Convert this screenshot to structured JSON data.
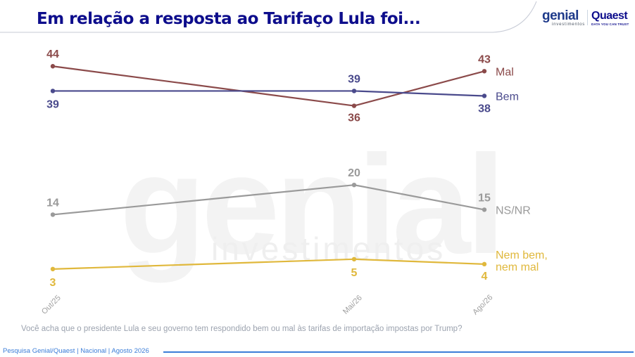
{
  "title": "Em relação a resposta ao Tarifaço Lula foi...",
  "logos": {
    "genial": "genial",
    "genial_sub": "investimentos",
    "quaest": "Quaest",
    "quaest_tagline": "DATA YOU CAN TRUST"
  },
  "watermark": {
    "word": "genial",
    "sub": "investimentos"
  },
  "colors": {
    "title": "#0d0d8c",
    "mal": "#8b4a4a",
    "bem": "#4a4a8c",
    "nsnr": "#9a9a9a",
    "nembem": "#e0b83c",
    "footer": "#3b7dd8"
  },
  "chart_data": {
    "type": "line",
    "categories": [
      "Out/25",
      "Mai/26",
      "Ago/26"
    ],
    "ylim": [
      0,
      50
    ],
    "series": [
      {
        "name": "Mal",
        "values": [
          44,
          36,
          43
        ],
        "color": "#8b4a4a"
      },
      {
        "name": "Bem",
        "values": [
          39,
          39,
          38
        ],
        "color": "#4a4a8c"
      },
      {
        "name": "NS/NR",
        "values": [
          14,
          20,
          15
        ],
        "color": "#9a9a9a"
      },
      {
        "name": "Nem bem, nem mal",
        "values": [
          3,
          5,
          4
        ],
        "color": "#e0b83c"
      }
    ]
  },
  "question": "Você acha que o presidente Lula e seu governo tem respondido bem ou mal às tarifas de importação impostas por Trump?",
  "footer": "Pesquisa Genial/Quaest | Nacional | Agosto 2026"
}
